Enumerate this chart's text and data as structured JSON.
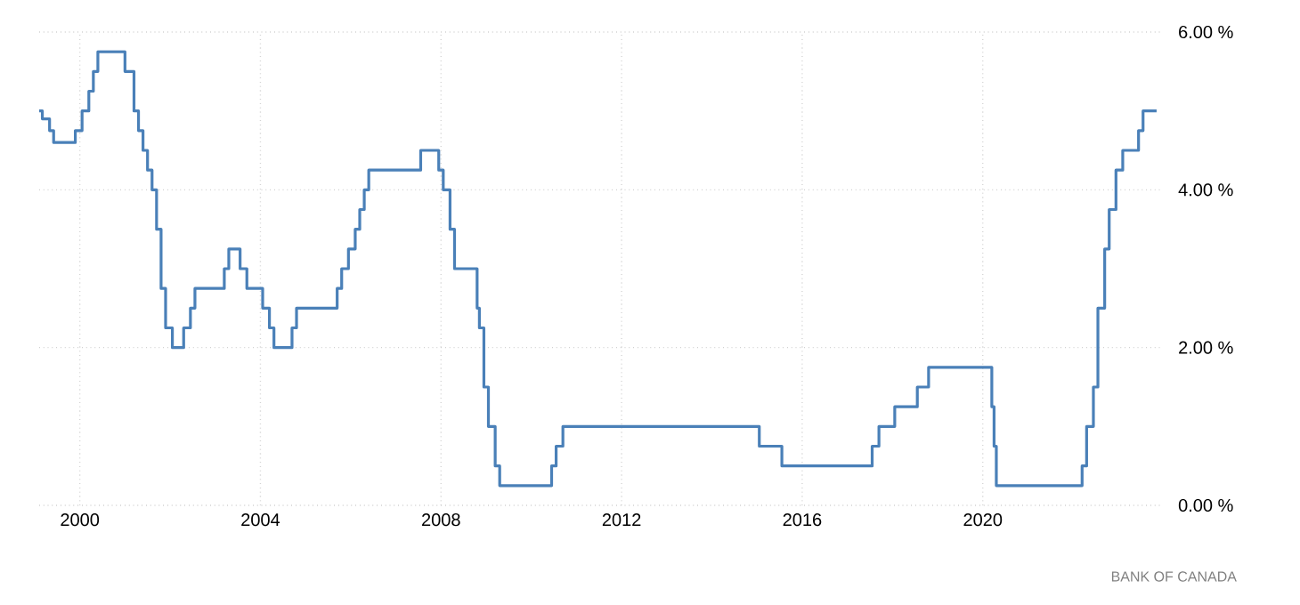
{
  "chart_data": {
    "type": "step",
    "x": [
      1999.1,
      1999.17,
      1999.33,
      1999.42,
      1999.9,
      2000.05,
      2000.2,
      2000.3,
      2000.4,
      2000.45,
      2001.0,
      2001.2,
      2001.3,
      2001.4,
      2001.5,
      2001.6,
      2001.7,
      2001.8,
      2001.9,
      2002.05,
      2002.3,
      2002.45,
      2002.55,
      2003.2,
      2003.3,
      2003.55,
      2003.7,
      2004.05,
      2004.2,
      2004.3,
      2004.7,
      2004.8,
      2005.7,
      2005.8,
      2005.95,
      2006.1,
      2006.2,
      2006.3,
      2006.4,
      2007.55,
      2007.95,
      2008.05,
      2008.2,
      2008.3,
      2008.8,
      2008.85,
      2008.95,
      2009.05,
      2009.2,
      2009.3,
      2010.45,
      2010.55,
      2010.7,
      2015.05,
      2015.55,
      2017.55,
      2017.7,
      2018.05,
      2018.55,
      2018.8,
      2020.2,
      2020.25,
      2020.3,
      2022.2,
      2022.3,
      2022.45,
      2022.55,
      2022.7,
      2022.8,
      2022.95,
      2023.1,
      2023.45,
      2023.55,
      2023.85
    ],
    "values": [
      5.0,
      4.9,
      4.75,
      4.6,
      4.75,
      5.0,
      5.25,
      5.5,
      5.75,
      5.75,
      5.5,
      5.0,
      4.75,
      4.5,
      4.25,
      4.0,
      3.5,
      2.75,
      2.25,
      2.0,
      2.25,
      2.5,
      2.75,
      3.0,
      3.25,
      3.0,
      2.75,
      2.5,
      2.25,
      2.0,
      2.25,
      2.5,
      2.75,
      3.0,
      3.25,
      3.5,
      3.75,
      4.0,
      4.25,
      4.5,
      4.25,
      4.0,
      3.5,
      3.0,
      2.5,
      2.25,
      1.5,
      1.0,
      0.5,
      0.25,
      0.5,
      0.75,
      1.0,
      0.75,
      0.5,
      0.75,
      1.0,
      1.25,
      1.5,
      1.75,
      1.25,
      0.75,
      0.25,
      0.5,
      1.0,
      1.5,
      2.5,
      3.25,
      3.75,
      4.25,
      4.5,
      4.75,
      5.0,
      5.0
    ],
    "color": "#4a80b8",
    "xlim": [
      1999.1,
      2023.95
    ],
    "ylim": [
      0,
      6
    ],
    "xticks": [
      2000,
      2004,
      2008,
      2012,
      2016,
      2020
    ],
    "yticks": [
      {
        "value": 0,
        "label": "0.00 %"
      },
      {
        "value": 2,
        "label": "2.00 %"
      },
      {
        "value": 4,
        "label": "4.00 %"
      },
      {
        "value": 6,
        "label": "6.00 %"
      }
    ],
    "grid": true,
    "annotations": [
      "BANK OF CANADA"
    ]
  }
}
